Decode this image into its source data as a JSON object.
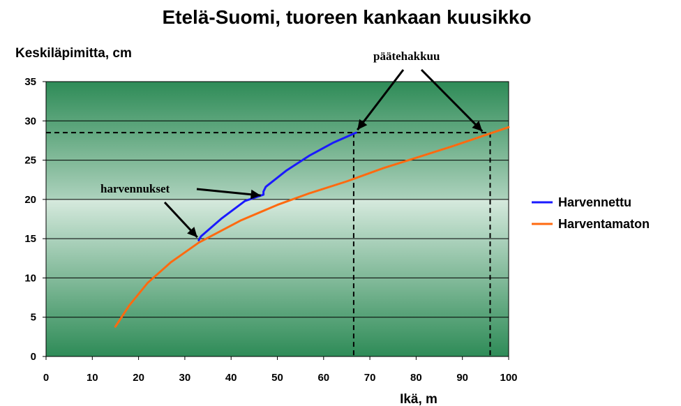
{
  "chart_data": {
    "type": "line",
    "title": "Etelä-Suomi, tuoreen kankaan kuusikko",
    "xlabel": "Ikä, m",
    "ylabel": "Keskiläpimitta, cm",
    "xlim": [
      0,
      100
    ],
    "ylim": [
      0,
      35
    ],
    "x_ticks": [
      "0",
      "10",
      "20",
      "30",
      "40",
      "50",
      "60",
      "70",
      "80",
      "90",
      "100"
    ],
    "y_ticks": [
      "0",
      "5",
      "10",
      "15",
      "20",
      "25",
      "30",
      "35"
    ],
    "grid": true,
    "legend_position": "right",
    "series": [
      {
        "name": "Harvennettu",
        "color": "#1a1aff",
        "x": [
          33,
          33.5,
          38,
          43,
          47,
          47,
          47.5,
          52,
          57,
          62,
          67
        ],
        "y": [
          14.8,
          15.3,
          17.6,
          19.8,
          20.6,
          21.0,
          21.6,
          23.7,
          25.6,
          27.2,
          28.5
        ]
      },
      {
        "name": "Harventamaton",
        "color": "#ff6a10",
        "x": [
          15,
          18,
          22,
          27,
          33,
          42,
          50,
          57,
          65,
          73,
          80,
          88,
          96,
          100
        ],
        "y": [
          3.8,
          6.5,
          9.4,
          12.0,
          14.5,
          17.3,
          19.3,
          20.8,
          22.3,
          24.0,
          25.3,
          26.8,
          28.4,
          29.2
        ]
      }
    ],
    "annotations": [
      {
        "text": "harvennukset",
        "arrows_to": [
          [
            33,
            15.0
          ],
          [
            47,
            20.6
          ]
        ]
      },
      {
        "text": "päätehakkuu",
        "arrows_to": [
          [
            67,
            28.5
          ],
          [
            94,
            28.5
          ]
        ]
      }
    ],
    "reference_lines": {
      "y": 28.5,
      "x": [
        66.5,
        96
      ]
    }
  }
}
